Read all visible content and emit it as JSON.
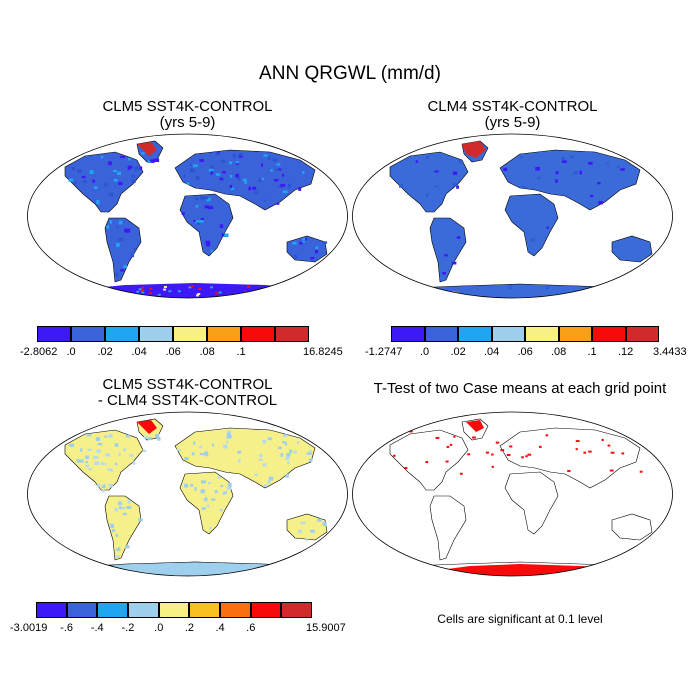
{
  "figure": {
    "title": "ANN QRGWL (mm/d)",
    "note": "Cells are significant at 0.1 level"
  },
  "chart_data": [
    {
      "type": "heatmap",
      "panel": "top-left",
      "title_line1": "CLM5 SST4K-CONTROL",
      "title_line2": "(yrs 5-9)",
      "colorbar": {
        "labels": [
          "-2.8062",
          ".0",
          ".02",
          ".04",
          ".06",
          ".08",
          ".1",
          "16.8245"
        ],
        "colors": [
          "#3d1af5",
          "#3a63d9",
          "#20a6f0",
          "#9ecfec",
          "#f8f085",
          "#f8a015",
          "#f80a0a",
          "#d02a2a"
        ]
      },
      "land_color": "#3a63d9",
      "ocean_color": "#ffffff"
    },
    {
      "type": "heatmap",
      "panel": "top-right",
      "title_line1": "CLM4 SST4K-CONTROL",
      "title_line2": "(yrs 5-9)",
      "colorbar": {
        "labels": [
          "-1.2747",
          ".0",
          ".02",
          ".04",
          ".06",
          ".08",
          ".1",
          ".12",
          "3.4433"
        ],
        "colors": [
          "#3d1af5",
          "#3a63d9",
          "#20a6f0",
          "#9ecfec",
          "#f8f085",
          "#f8a015",
          "#f80a0a",
          "#d02a2a"
        ]
      },
      "land_color": "#3a6bd9",
      "ocean_color": "#ffffff"
    },
    {
      "type": "heatmap",
      "panel": "bottom-left",
      "title_line1": "CLM5 SST4K-CONTROL",
      "title_line2": "- CLM4 SST4K-CONTROL",
      "colorbar": {
        "labels": [
          "-3.0019",
          "-.6",
          "-.4",
          "-.2",
          ".0",
          ".2",
          ".4",
          ".6",
          "15.9007"
        ],
        "colors": [
          "#3d1af5",
          "#3a63d9",
          "#20a6f0",
          "#9ecfec",
          "#f8f085",
          "#f8c020",
          "#f87010",
          "#f80a0a",
          "#d02a2a"
        ]
      },
      "land_color": "#f6f08a",
      "ocean_color": "#ffffff"
    },
    {
      "type": "heatmap",
      "panel": "bottom-right",
      "title_line1": "T-Test of two Case means at each grid point",
      "title_line2": "",
      "colorbar": null,
      "land_color": "#ffffff",
      "ocean_color": "#ffffff",
      "significant_color": "#f80a0a"
    }
  ]
}
